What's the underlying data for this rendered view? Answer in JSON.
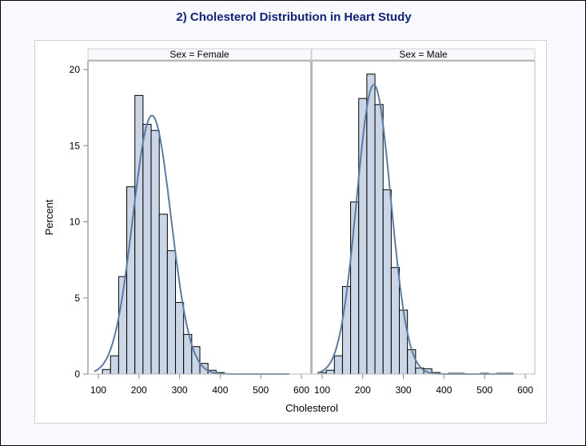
{
  "chart_data": {
    "type": "bar",
    "title": "2) Cholesterol Distribution in Heart Study",
    "xlabel": "Cholesterol",
    "ylabel": "Percent",
    "xlim": [
      85,
      615
    ],
    "ylim": [
      0,
      21
    ],
    "xticks": [
      100,
      200,
      300,
      400,
      500,
      600
    ],
    "yticks": [
      0,
      5,
      10,
      15,
      20
    ],
    "bin_width": 20,
    "fill_color": "#CAD5E5",
    "edge_color": "#000000",
    "curve_color": "#5B7BA3",
    "panels": [
      {
        "label": "Sex = Female",
        "bin_starts": [
          110,
          130,
          150,
          170,
          190,
          210,
          230,
          250,
          270,
          290,
          310,
          330,
          350,
          370,
          390
        ],
        "values": [
          0.3,
          1.2,
          6.4,
          12.3,
          18.3,
          16.4,
          16.0,
          10.5,
          8.1,
          4.7,
          2.6,
          1.8,
          0.7,
          0.25,
          0.1
        ],
        "normal_fit": {
          "mean": 232,
          "sd": 47,
          "x_range": [
            90,
            570
          ]
        }
      },
      {
        "label": "Sex = Male",
        "bin_starts": [
          90,
          110,
          130,
          150,
          170,
          190,
          210,
          230,
          250,
          270,
          290,
          310,
          330,
          350,
          370,
          390,
          410,
          430,
          450,
          470,
          490,
          510,
          530,
          550
        ],
        "values": [
          0.1,
          0.25,
          1.2,
          5.75,
          11.3,
          18.1,
          19.7,
          17.7,
          12.1,
          7.0,
          4.2,
          1.6,
          0.4,
          0.35,
          0.1,
          0.0,
          0.05,
          0.05,
          0.0,
          0.0,
          0.05,
          0.0,
          0.05,
          0.05
        ],
        "normal_fit": {
          "mean": 227,
          "sd": 42,
          "x_range": [
            90,
            570
          ]
        }
      }
    ]
  }
}
